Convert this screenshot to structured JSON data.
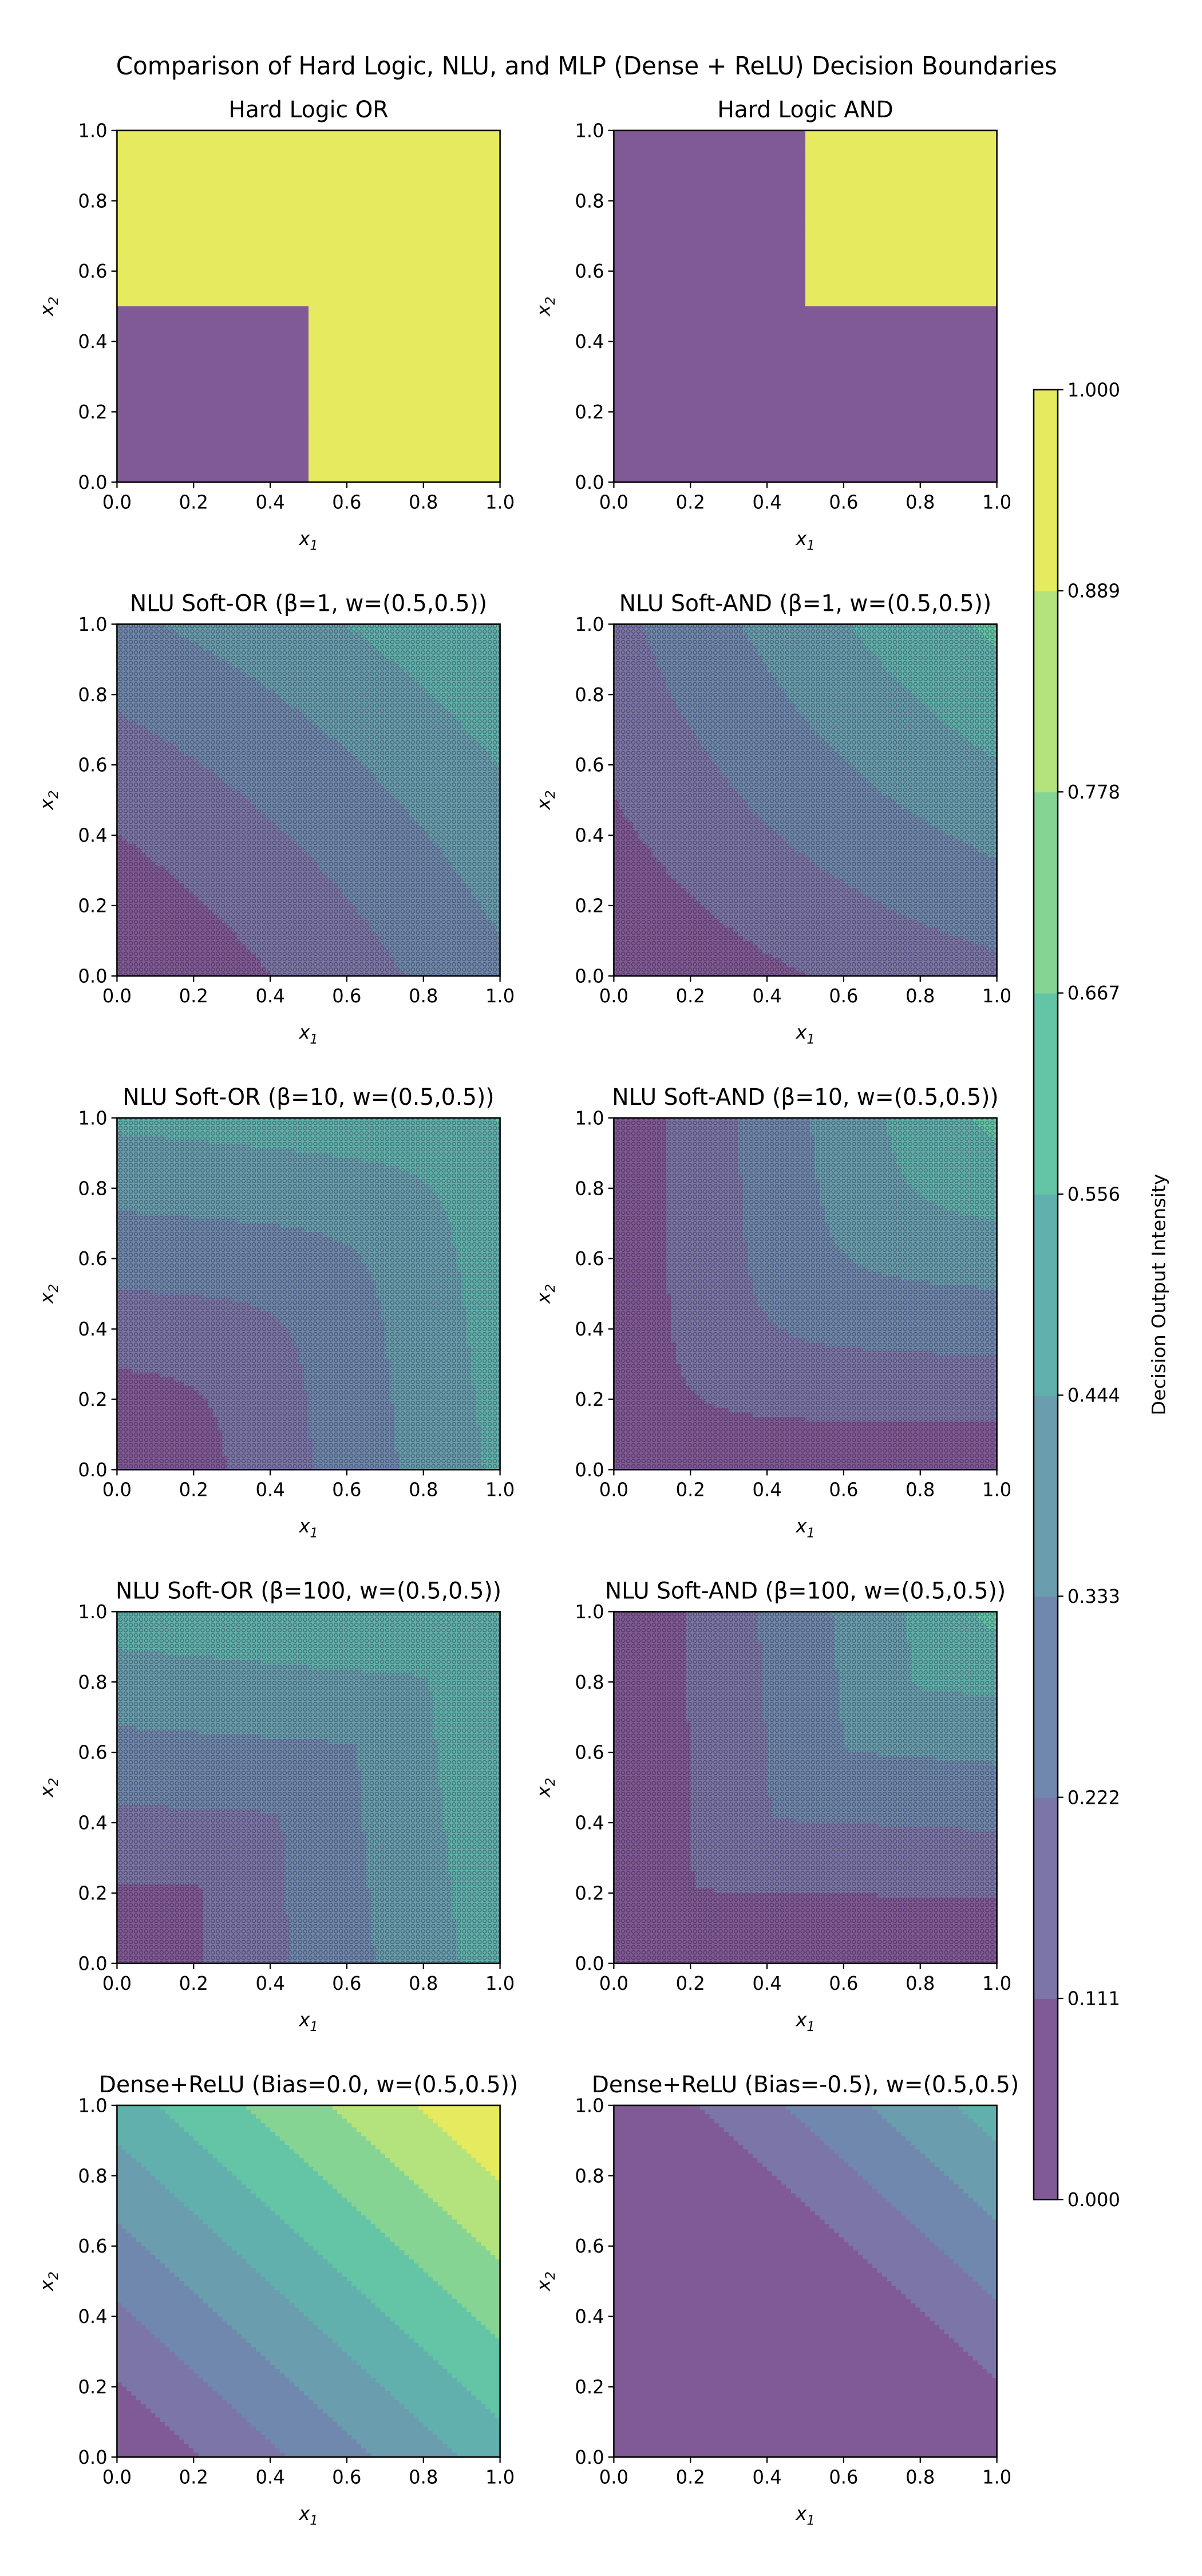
{
  "chart_data": {
    "type": "heatmap",
    "title": "Comparison of Hard Logic, NLU, and MLP (Dense + ReLU) Decision Boundaries",
    "xlabel": "x1",
    "ylabel": "x2",
    "xlim": [
      0,
      1
    ],
    "ylim": [
      0,
      1
    ],
    "ticks": [
      "0.0",
      "0.2",
      "0.4",
      "0.6",
      "0.8",
      "1.0"
    ],
    "colorbar": {
      "label": "Decision Output Intensity",
      "levels": [
        0.0,
        0.111,
        0.222,
        0.333,
        0.444,
        0.556,
        0.667,
        0.778,
        0.889,
        1.0
      ],
      "tick_labels": [
        "0.000",
        "0.111",
        "0.222",
        "0.333",
        "0.444",
        "0.556",
        "0.667",
        "0.778",
        "0.889",
        "1.000"
      ],
      "colors": [
        "#805a96",
        "#7c76a8",
        "#7088ad",
        "#6a9dae",
        "#62b0ad",
        "#64c4a6",
        "#86d494",
        "#b4e27c",
        "#e5ea5e"
      ],
      "colormap": "viridis"
    },
    "panels": [
      {
        "title": "Hard Logic OR",
        "kind": "hard_or"
      },
      {
        "title": "Hard Logic AND",
        "kind": "hard_and"
      },
      {
        "title": "NLU Soft-OR (β=1, w=(0.5,0.5))",
        "kind": "soft_or",
        "beta": 1,
        "w": [
          0.5,
          0.5
        ],
        "hatched": true
      },
      {
        "title": "NLU Soft-AND (β=1, w=(0.5,0.5))",
        "kind": "soft_and",
        "beta": 1,
        "w": [
          0.5,
          0.5
        ],
        "hatched": true
      },
      {
        "title": "NLU Soft-OR (β=10, w=(0.5,0.5))",
        "kind": "soft_or",
        "beta": 10,
        "w": [
          0.5,
          0.5
        ],
        "hatched": true
      },
      {
        "title": "NLU Soft-AND (β=10, w=(0.5,0.5))",
        "kind": "soft_and",
        "beta": 10,
        "w": [
          0.5,
          0.5
        ],
        "hatched": true
      },
      {
        "title": "NLU Soft-OR (β=100, w=(0.5,0.5))",
        "kind": "soft_or",
        "beta": 100,
        "w": [
          0.5,
          0.5
        ],
        "hatched": true
      },
      {
        "title": "NLU Soft-AND (β=100, w=(0.5,0.5))",
        "kind": "soft_and",
        "beta": 100,
        "w": [
          0.5,
          0.5
        ],
        "hatched": true
      },
      {
        "title": "Dense+ReLU (Bias=0.0, w=(0.5,0.5))",
        "kind": "relu",
        "bias": 0.0,
        "w": [
          0.5,
          0.5
        ]
      },
      {
        "title": "Dense+ReLU (Bias=-0.5), w=(0.5,0.5)",
        "kind": "relu",
        "bias": -0.5,
        "w": [
          0.5,
          0.5
        ]
      }
    ]
  }
}
